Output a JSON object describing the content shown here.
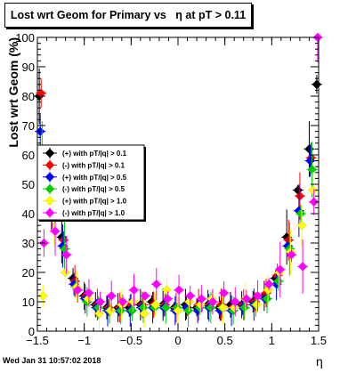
{
  "chart_data": {
    "type": "scatter",
    "title": "Lost wrt Geom for Primary vs   η at pT > 0.11",
    "ylabel": "Lost wrt Geom (%)",
    "xlabel": "η",
    "xlim": [
      -1.5,
      1.5
    ],
    "ylim": [
      0,
      100
    ],
    "x_ticks": [
      "−1.5",
      "−1",
      "−0.5",
      "0",
      "0.5",
      "1",
      "1.5"
    ],
    "y_ticks": [
      "0",
      "10",
      "20",
      "30",
      "40",
      "50",
      "60",
      "70",
      "80",
      "90",
      "100"
    ],
    "legend_placement": "left-middle",
    "series": [
      {
        "name": "(+) with pT/|q| > 0.1",
        "color": "#000000",
        "x": [
          -1.48,
          -1.36,
          -1.24,
          -1.12,
          -1.0,
          -0.88,
          -0.76,
          -0.64,
          -0.52,
          -0.4,
          -0.28,
          -0.16,
          -0.04,
          0.08,
          0.2,
          0.32,
          0.44,
          0.56,
          0.68,
          0.8,
          0.92,
          1.04,
          1.16,
          1.28,
          1.4,
          1.48
        ],
        "y": [
          80,
          45,
          32,
          18,
          12,
          9,
          8,
          8,
          8,
          9,
          10,
          9,
          8,
          9,
          8,
          9,
          8,
          9,
          9,
          10,
          12,
          18,
          32,
          48,
          62,
          84
        ]
      },
      {
        "name": "(-) with pT/|q| > 0.1",
        "color": "#ff0000",
        "x": [
          -1.46,
          -1.34,
          -1.22,
          -1.1,
          -0.98,
          -0.86,
          -0.74,
          -0.62,
          -0.5,
          -0.38,
          -0.26,
          -0.14,
          -0.02,
          0.1,
          0.22,
          0.34,
          0.46,
          0.58,
          0.7,
          0.82,
          0.94,
          1.06,
          1.18,
          1.3,
          1.42
        ],
        "y": [
          81,
          44,
          31,
          17,
          12,
          9,
          8,
          8,
          9,
          9,
          9,
          9,
          8,
          8,
          9,
          9,
          9,
          8,
          9,
          10,
          13,
          19,
          31,
          46,
          59
        ]
      },
      {
        "name": "(+) with pT/|q| > 0.5",
        "color": "#0000ff",
        "x": [
          -1.47,
          -1.35,
          -1.23,
          -1.11,
          -0.99,
          -0.87,
          -0.75,
          -0.63,
          -0.51,
          -0.39,
          -0.27,
          -0.15,
          -0.03,
          0.09,
          0.21,
          0.33,
          0.45,
          0.57,
          0.69,
          0.81,
          0.93,
          1.05,
          1.17,
          1.29,
          1.41
        ],
        "y": [
          68,
          42,
          29,
          16,
          11,
          8,
          7,
          7,
          7,
          8,
          8,
          8,
          7,
          8,
          7,
          8,
          7,
          7,
          8,
          9,
          11,
          16,
          29,
          41,
          58
        ]
      },
      {
        "name": "(-) with pT/|q| > 0.5",
        "color": "#00cc00",
        "x": [
          -1.45,
          -1.33,
          -1.21,
          -1.09,
          -0.97,
          -0.85,
          -0.73,
          -0.61,
          -0.49,
          -0.37,
          -0.25,
          -0.13,
          -0.01,
          0.11,
          0.23,
          0.35,
          0.47,
          0.59,
          0.71,
          0.83,
          0.95,
          1.07,
          1.19,
          1.31,
          1.43
        ],
        "y": [
          62,
          40,
          28,
          15,
          10,
          8,
          7,
          7,
          7,
          8,
          8,
          8,
          8,
          7,
          8,
          8,
          8,
          7,
          8,
          9,
          11,
          17,
          28,
          40,
          55
        ]
      },
      {
        "name": "(+) with pT/|q| > 1.0",
        "color": "#ffff00",
        "x": [
          -1.44,
          -1.32,
          -1.2,
          -1.08,
          -0.96,
          -0.84,
          -0.72,
          -0.6,
          -0.48,
          -0.36,
          -0.24,
          -0.12,
          0.0,
          0.12,
          0.24,
          0.36,
          0.48,
          0.6,
          0.72,
          0.84,
          0.96,
          1.08,
          1.2,
          1.32,
          1.44
        ],
        "y": [
          12,
          38,
          20,
          15,
          11,
          6,
          7,
          9,
          10,
          6,
          9,
          14,
          7,
          10,
          9,
          11,
          8,
          8,
          11,
          9,
          14,
          20,
          27,
          36,
          48
        ]
      },
      {
        "name": "(-) with pT/|q| > 1.0",
        "color": "#ff00ff",
        "x": [
          -1.43,
          -1.31,
          -1.19,
          -1.07,
          -0.95,
          -0.83,
          -0.71,
          -0.59,
          -0.47,
          -0.35,
          -0.23,
          -0.11,
          0.01,
          0.13,
          0.25,
          0.37,
          0.49,
          0.61,
          0.73,
          0.85,
          0.97,
          1.09,
          1.21,
          1.33,
          1.45,
          1.49
        ],
        "y": [
          30,
          34,
          26,
          14,
          13,
          10,
          12,
          10,
          14,
          12,
          16,
          11,
          14,
          12,
          11,
          10,
          13,
          10,
          11,
          12,
          16,
          21,
          26,
          22,
          44,
          100
        ]
      }
    ]
  },
  "footer": {
    "timestamp": "Wed Jan 31 10:57:02 2018"
  }
}
